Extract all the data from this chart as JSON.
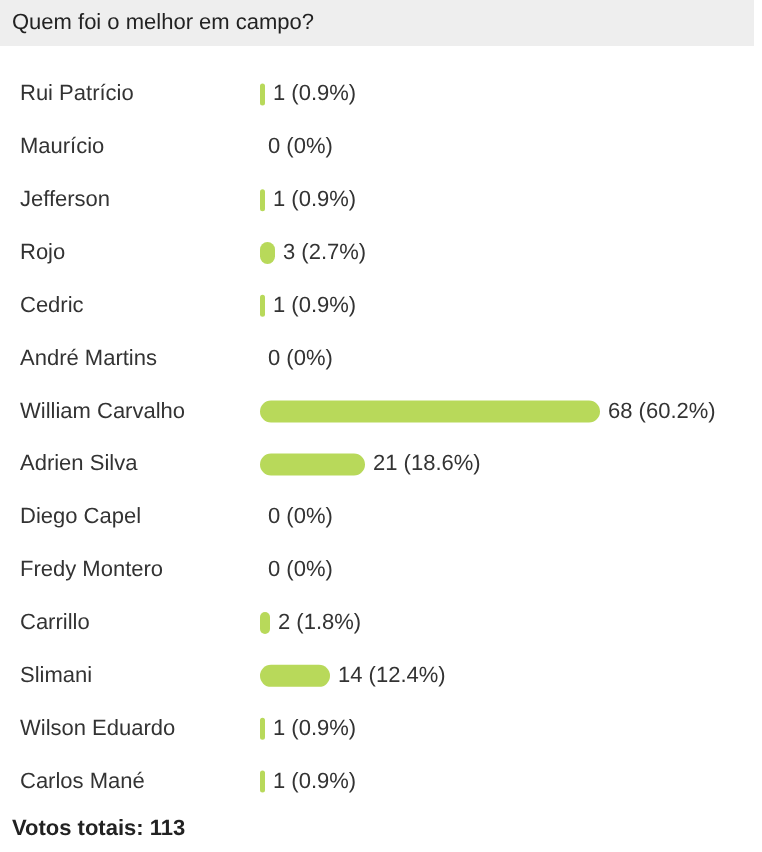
{
  "chart_data": {
    "type": "bar",
    "orientation": "horizontal",
    "title": "Quem foi o melhor em campo?",
    "categories": [
      "Rui Patrício",
      "Maurício",
      "Jefferson",
      "Rojo",
      "Cedric",
      "André Martins",
      "William Carvalho",
      "Adrien Silva",
      "Diego Capel",
      "Fredy Montero",
      "Carrillo",
      "Slimani",
      "Wilson Eduardo",
      "Carlos Mané"
    ],
    "values": [
      1,
      0,
      1,
      3,
      1,
      0,
      68,
      21,
      0,
      0,
      2,
      14,
      1,
      1
    ],
    "value_labels": [
      "1 (0.9%)",
      "0 (0%)",
      "1 (0.9%)",
      "3 (2.7%)",
      "1 (0.9%)",
      "0 (0%)",
      "68 (60.2%)",
      "21 (18.6%)",
      "0 (0%)",
      "0 (0%)",
      "2 (1.8%)",
      "14 (12.4%)",
      "1 (0.9%)",
      "1 (0.9%)"
    ],
    "color": "#b8d95a",
    "grid": false,
    "annotations": [
      "Votos totais: 113"
    ]
  }
}
